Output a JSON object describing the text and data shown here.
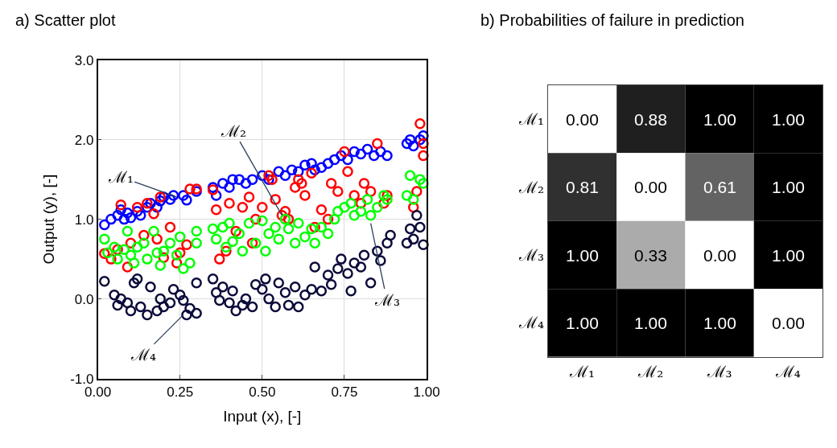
{
  "chart_data": [
    {
      "type": "scatter",
      "title": "a) Scatter plot",
      "xlabel": "Input (x), [-]",
      "ylabel": "Output (y), [-]",
      "xlim": [
        0,
        1
      ],
      "xticks": [
        {
          "value": 0,
          "label": "0.00"
        },
        {
          "value": 0.25,
          "label": "0.25"
        },
        {
          "value": 0.5,
          "label": "0.50"
        },
        {
          "value": 0.75,
          "label": "0.75"
        },
        {
          "value": 1,
          "label": "1.00"
        }
      ],
      "ylim": [
        -1,
        3
      ],
      "yticks": [
        {
          "value": -1,
          "label": "-1.0"
        },
        {
          "value": 0,
          "label": "0.0"
        },
        {
          "value": 1,
          "label": "1.0"
        },
        {
          "value": 2,
          "label": "2.0"
        },
        {
          "value": 3,
          "label": "3.0"
        }
      ],
      "grid": true,
      "marker": "circle",
      "series": [
        {
          "color": "#0000ff",
          "x": [
            0.02,
            0.04,
            0.06,
            0.07,
            0.08,
            0.09,
            0.1,
            0.12,
            0.13,
            0.15,
            0.16,
            0.18,
            0.19,
            0.2,
            0.22,
            0.23,
            0.26,
            0.27,
            0.3,
            0.35,
            0.36,
            0.38,
            0.4,
            0.41,
            0.43,
            0.45,
            0.47,
            0.5,
            0.52,
            0.55,
            0.57,
            0.59,
            0.61,
            0.63,
            0.65,
            0.66,
            0.68,
            0.7,
            0.72,
            0.74,
            0.76,
            0.78,
            0.8,
            0.82,
            0.84,
            0.86,
            0.88,
            0.94,
            0.95,
            0.96,
            0.98,
            0.99
          ],
          "values": [
            0.93,
            1.0,
            1.05,
            1.12,
            1.0,
            1.08,
            1.02,
            1.1,
            1.05,
            1.15,
            1.2,
            1.15,
            1.23,
            1.28,
            1.25,
            1.3,
            1.3,
            1.24,
            1.35,
            1.4,
            1.3,
            1.45,
            1.4,
            1.5,
            1.5,
            1.45,
            1.5,
            1.55,
            1.5,
            1.6,
            1.55,
            1.62,
            1.6,
            1.68,
            1.7,
            1.62,
            1.65,
            1.7,
            1.75,
            1.8,
            1.75,
            1.85,
            1.82,
            1.88,
            1.8,
            1.85,
            1.8,
            1.95,
            2.0,
            1.92,
            2.0,
            2.05
          ]
        },
        {
          "color": "#ff0000",
          "x": [
            0.02,
            0.04,
            0.06,
            0.07,
            0.09,
            0.1,
            0.12,
            0.14,
            0.15,
            0.17,
            0.18,
            0.19,
            0.2,
            0.22,
            0.24,
            0.25,
            0.27,
            0.28,
            0.3,
            0.35,
            0.36,
            0.37,
            0.39,
            0.4,
            0.42,
            0.44,
            0.46,
            0.47,
            0.48,
            0.5,
            0.52,
            0.53,
            0.54,
            0.56,
            0.57,
            0.58,
            0.6,
            0.61,
            0.62,
            0.63,
            0.65,
            0.66,
            0.68,
            0.7,
            0.71,
            0.73,
            0.75,
            0.76,
            0.78,
            0.8,
            0.81,
            0.83,
            0.85,
            0.87,
            0.88,
            0.96,
            0.97,
            0.98,
            0.99,
            0.99
          ],
          "values": [
            0.57,
            0.5,
            0.62,
            1.18,
            0.4,
            0.7,
            1.15,
            0.8,
            1.2,
            1.07,
            0.75,
            1.28,
            0.52,
            0.9,
            0.45,
            0.58,
            0.68,
            1.38,
            1.38,
            1.37,
            1.12,
            0.5,
            0.6,
            1.2,
            0.85,
            1.15,
            1.28,
            0.7,
            1.0,
            1.15,
            1.55,
            1.5,
            1.25,
            1.05,
            1.1,
            1.0,
            1.4,
            1.5,
            1.45,
            1.3,
            1.58,
            0.9,
            1.12,
            1.0,
            1.45,
            1.35,
            1.85,
            1.6,
            1.3,
            1.2,
            1.45,
            1.35,
            1.95,
            1.2,
            1.3,
            1.15,
            1.35,
            2.2,
            1.95,
            1.8
          ]
        },
        {
          "color": "#00ff00",
          "x": [
            0.02,
            0.03,
            0.05,
            0.06,
            0.08,
            0.09,
            0.1,
            0.11,
            0.12,
            0.14,
            0.15,
            0.17,
            0.18,
            0.19,
            0.2,
            0.22,
            0.24,
            0.25,
            0.26,
            0.28,
            0.3,
            0.3,
            0.35,
            0.36,
            0.38,
            0.39,
            0.4,
            0.41,
            0.43,
            0.44,
            0.46,
            0.48,
            0.5,
            0.51,
            0.52,
            0.54,
            0.55,
            0.57,
            0.58,
            0.6,
            0.61,
            0.63,
            0.65,
            0.66,
            0.68,
            0.7,
            0.72,
            0.73,
            0.75,
            0.77,
            0.78,
            0.8,
            0.82,
            0.83,
            0.85,
            0.87,
            0.88,
            0.94,
            0.95,
            0.96,
            0.98,
            0.99
          ],
          "values": [
            0.75,
            0.58,
            0.65,
            0.5,
            0.62,
            0.85,
            0.55,
            0.45,
            0.65,
            0.7,
            0.5,
            0.85,
            0.58,
            0.42,
            0.6,
            0.7,
            0.55,
            0.78,
            0.38,
            0.45,
            0.85,
            0.7,
            0.88,
            0.75,
            0.9,
            0.65,
            0.95,
            0.72,
            0.82,
            0.6,
            0.95,
            0.7,
            0.98,
            0.6,
            0.82,
            0.9,
            0.75,
            1.0,
            0.88,
            0.7,
            0.95,
            0.78,
            0.88,
            0.7,
            0.9,
            0.82,
            1.0,
            1.1,
            1.15,
            1.2,
            1.05,
            1.1,
            1.25,
            1.05,
            1.15,
            1.3,
            1.25,
            1.3,
            1.55,
            1.25,
            1.5,
            1.45
          ]
        },
        {
          "color": "#0a0a3a",
          "x": [
            0.02,
            0.05,
            0.06,
            0.07,
            0.09,
            0.1,
            0.11,
            0.12,
            0.13,
            0.15,
            0.16,
            0.18,
            0.19,
            0.2,
            0.22,
            0.23,
            0.25,
            0.26,
            0.27,
            0.28,
            0.3,
            0.3,
            0.35,
            0.36,
            0.37,
            0.38,
            0.4,
            0.41,
            0.42,
            0.44,
            0.45,
            0.47,
            0.48,
            0.5,
            0.51,
            0.52,
            0.54,
            0.55,
            0.57,
            0.58,
            0.6,
            0.61,
            0.63,
            0.65,
            0.66,
            0.68,
            0.7,
            0.71,
            0.73,
            0.74,
            0.76,
            0.77,
            0.78,
            0.8,
            0.81,
            0.83,
            0.85,
            0.86,
            0.88,
            0.89,
            0.94,
            0.95,
            0.96,
            0.97,
            0.98,
            0.99
          ],
          "values": [
            0.22,
            0.05,
            -0.08,
            0.0,
            -0.05,
            -0.15,
            0.2,
            0.25,
            -0.1,
            -0.2,
            0.15,
            -0.15,
            0.0,
            -0.1,
            -0.05,
            0.12,
            0.05,
            -0.02,
            -0.2,
            -0.12,
            -0.18,
            0.2,
            0.25,
            0.08,
            -0.02,
            0.15,
            -0.05,
            0.1,
            -0.15,
            -0.08,
            0.0,
            -0.1,
            0.18,
            0.12,
            0.25,
            0.0,
            -0.1,
            0.2,
            0.08,
            -0.08,
            0.15,
            -0.1,
            0.05,
            0.12,
            0.4,
            0.1,
            0.3,
            0.18,
            0.38,
            0.5,
            0.32,
            0.1,
            0.45,
            0.4,
            0.55,
            0.2,
            0.6,
            0.48,
            0.7,
            0.8,
            0.7,
            0.88,
            0.75,
            1.05,
            0.9,
            0.68
          ]
        }
      ],
      "annotations": [
        {
          "text": "ℳ₁",
          "x": 0.24,
          "y": 1.28
        },
        {
          "text": "ℳ₂",
          "x": 0.56,
          "y": 1.05
        },
        {
          "text": "ℳ₃",
          "x": 0.83,
          "y": 0.95
        },
        {
          "text": "ℳ₄",
          "x": 0.26,
          "y": -0.2
        }
      ]
    },
    {
      "type": "heatmap",
      "title": "b) Probabilities of failure in prediction",
      "categories": [
        "ℳ₁",
        "ℳ₂",
        "ℳ₃",
        "ℳ₄"
      ],
      "y_categories": [
        "ℳ₁",
        "ℳ₂",
        "ℳ₃",
        "ℳ₄"
      ],
      "cells": [
        [
          0.0,
          0.88,
          1.0,
          1.0
        ],
        [
          0.81,
          0.0,
          0.61,
          1.0
        ],
        [
          1.0,
          0.33,
          0.0,
          1.0
        ],
        [
          1.0,
          1.0,
          1.0,
          0.0
        ]
      ],
      "cell_labels": [
        [
          "0.00",
          "0.88",
          "1.00",
          "1.00"
        ],
        [
          "0.81",
          "0.00",
          "0.61",
          "1.00"
        ],
        [
          "1.00",
          "0.33",
          "0.00",
          "1.00"
        ],
        [
          "1.00",
          "1.00",
          "1.00",
          "0.00"
        ]
      ]
    }
  ]
}
